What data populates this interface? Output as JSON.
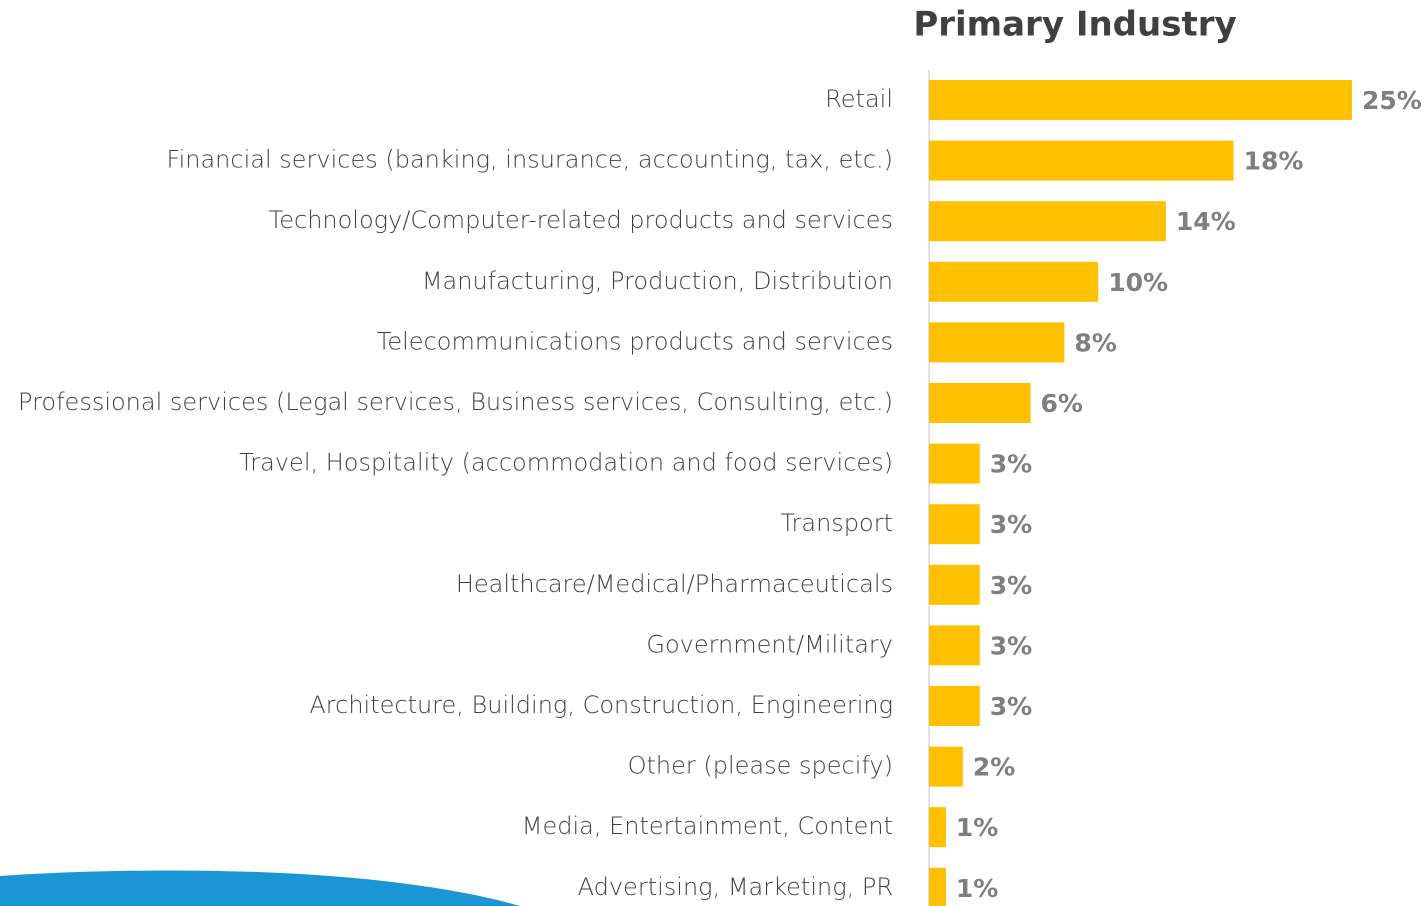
{
  "chart_data": {
    "type": "bar",
    "orientation": "horizontal",
    "title": "Primary Industry",
    "categories": [
      "Retail",
      "Financial services (banking, insurance, accounting, tax, etc.)",
      "Technology/Computer-related products and services",
      "Manufacturing, Production, Distribution",
      "Telecommunications products and services",
      "Professional services (Legal services, Business services, Consulting, etc.)",
      "Travel, Hospitality (accommodation and food services)",
      "Transport",
      "Healthcare/Medical/Pharmaceuticals",
      "Government/Military",
      "Architecture, Building, Construction, Engineering",
      "Other (please specify)",
      "Media, Entertainment, Content",
      "Advertising, Marketing, PR"
    ],
    "values": [
      25,
      18,
      14,
      10,
      8,
      6,
      3,
      3,
      3,
      3,
      3,
      2,
      1,
      1
    ],
    "value_labels": [
      "25%",
      "18%",
      "14%",
      "10%",
      "8%",
      "6%",
      "3%",
      "3%",
      "3%",
      "3%",
      "3%",
      "2%",
      "1%",
      "1%"
    ],
    "color": "#ffc000"
  }
}
